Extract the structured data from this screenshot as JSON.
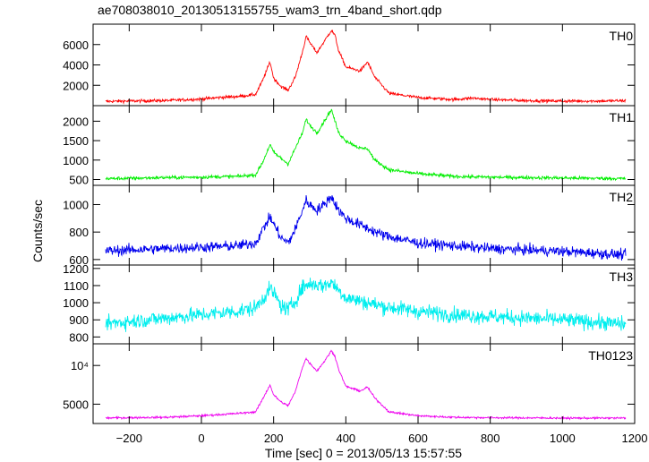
{
  "chart_data": {
    "type": "line",
    "title": "ae708038010_20130513155755_wam3_trn_4band_short.qdp",
    "xlabel": "Time [sec] 0 = 2013/05/13 15:57:55",
    "ylabel": "Counts/sec",
    "xlim": [
      -300,
      1200
    ],
    "x_ticks": [
      "−200",
      "0",
      "200",
      "400",
      "600",
      "800",
      "1000",
      "1200"
    ],
    "x_tick_values": [
      -200,
      0,
      200,
      400,
      600,
      800,
      1000,
      1200
    ],
    "panels": [
      {
        "name": "TH0",
        "color": "#ff0000",
        "ylim": [
          0,
          8000
        ],
        "yticks": [
          2000,
          4000,
          6000
        ],
        "ytick_labels": [
          "2000",
          "4000",
          "6000"
        ],
        "noise": 150,
        "x": [
          -300,
          -200,
          -100,
          0,
          50,
          100,
          150,
          170,
          190,
          200,
          220,
          240,
          260,
          280,
          290,
          300,
          320,
          340,
          360,
          370,
          380,
          400,
          440,
          460,
          480,
          520,
          600,
          700,
          750,
          800,
          900,
          1000,
          1100,
          1200
        ],
        "y": [
          400,
          450,
          500,
          650,
          800,
          900,
          1100,
          2500,
          4300,
          2700,
          1900,
          1500,
          2800,
          5300,
          6800,
          6200,
          5200,
          6300,
          7400,
          6900,
          5400,
          3800,
          3400,
          4300,
          2800,
          1200,
          800,
          600,
          750,
          600,
          500,
          450,
          450,
          500
        ]
      },
      {
        "name": "TH1",
        "color": "#00ee00",
        "ylim": [
          350,
          2400
        ],
        "yticks": [
          500,
          1000,
          1500,
          2000
        ],
        "ytick_labels": [
          "500",
          "1000",
          "1500",
          "2000"
        ],
        "noise": 45,
        "x": [
          -300,
          -200,
          -100,
          0,
          100,
          150,
          170,
          190,
          200,
          220,
          240,
          260,
          280,
          290,
          300,
          320,
          340,
          360,
          370,
          380,
          400,
          440,
          460,
          480,
          520,
          600,
          700,
          800,
          1000,
          1200
        ],
        "y": [
          520,
          530,
          550,
          560,
          580,
          620,
          950,
          1400,
          1200,
          1050,
          900,
          1300,
          1700,
          2050,
          1900,
          1700,
          2000,
          2300,
          2000,
          1700,
          1500,
          1300,
          1300,
          1000,
          750,
          650,
          580,
          560,
          540,
          520
        ]
      },
      {
        "name": "TH2",
        "color": "#0000ee",
        "ylim": [
          560,
          1140
        ],
        "yticks": [
          600,
          800,
          1000
        ],
        "ytick_labels": [
          "600",
          "800",
          "1000"
        ],
        "noise": 38,
        "x": [
          -300,
          -200,
          -100,
          0,
          100,
          150,
          170,
          190,
          200,
          220,
          240,
          260,
          280,
          290,
          300,
          320,
          340,
          360,
          380,
          400,
          450,
          500,
          600,
          700,
          800,
          1000,
          1200
        ],
        "y": [
          660,
          670,
          680,
          690,
          700,
          720,
          820,
          910,
          860,
          760,
          720,
          820,
          960,
          1030,
          1000,
          960,
          1000,
          1060,
          960,
          900,
          840,
          780,
          720,
          700,
          680,
          660,
          630
        ]
      },
      {
        "name": "TH3",
        "color": "#00eeee",
        "ylim": [
          760,
          1220
        ],
        "yticks": [
          800,
          900,
          1000,
          1100,
          1200
        ],
        "ytick_labels": [
          "800",
          "900",
          "1000",
          "1100",
          "1200"
        ],
        "noise": 45,
        "x": [
          -300,
          -200,
          -100,
          0,
          100,
          150,
          190,
          200,
          220,
          240,
          260,
          280,
          300,
          340,
          360,
          400,
          500,
          600,
          700,
          800,
          1000,
          1200
        ],
        "y": [
          870,
          890,
          910,
          930,
          950,
          970,
          1080,
          1060,
          980,
          960,
          1010,
          1090,
          1110,
          1100,
          1120,
          1030,
          980,
          950,
          930,
          920,
          900,
          870
        ]
      },
      {
        "name": "TH0123",
        "color": "#ee00ee",
        "ylim": [
          2500,
          12800
        ],
        "yticks": [
          5000,
          10000
        ],
        "ytick_labels": [
          "5000",
          "10⁴"
        ],
        "noise": 130,
        "x": [
          -300,
          -200,
          -100,
          0,
          100,
          150,
          170,
          190,
          200,
          220,
          240,
          260,
          280,
          290,
          300,
          320,
          340,
          360,
          370,
          380,
          400,
          440,
          460,
          480,
          520,
          600,
          700,
          800,
          1000,
          1200
        ],
        "y": [
          3200,
          3250,
          3300,
          3500,
          3800,
          4000,
          5700,
          7500,
          6200,
          5300,
          4800,
          6600,
          9800,
          10900,
          10300,
          9300,
          10500,
          11900,
          11200,
          9500,
          7300,
          6700,
          7200,
          5800,
          4000,
          3500,
          3300,
          3250,
          3200,
          3200
        ]
      }
    ]
  }
}
